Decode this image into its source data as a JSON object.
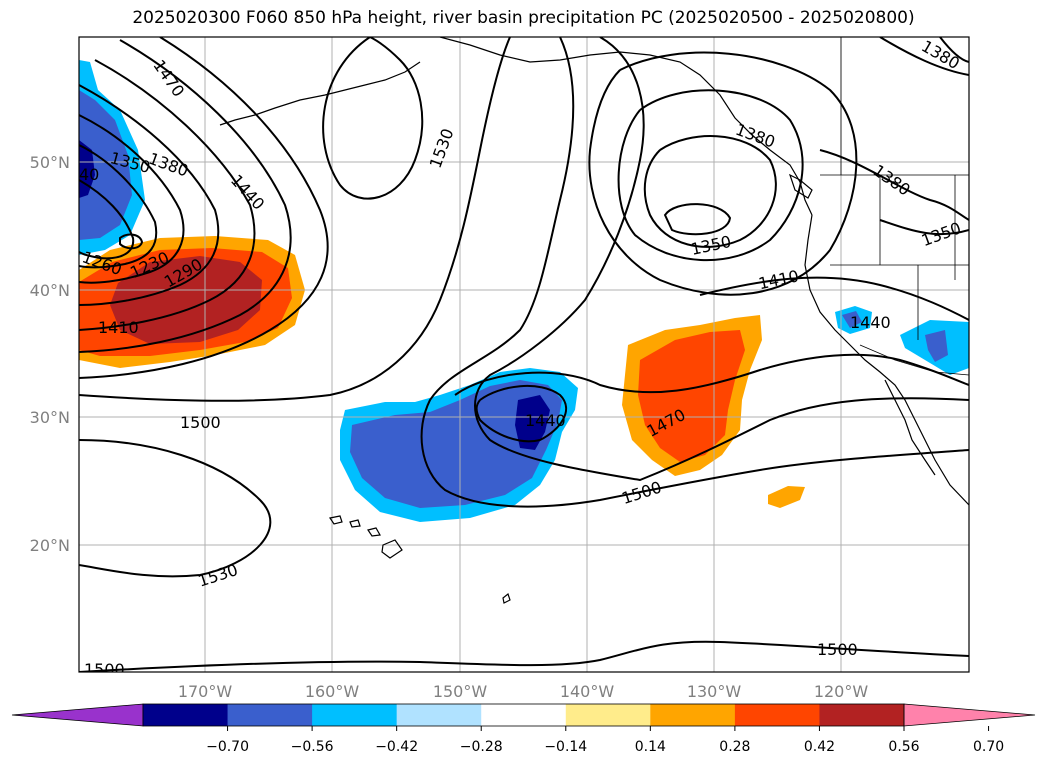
{
  "title": "2025020300 F060 850 hPa height, river basin precipitation PC (2025020500 - 2025020800)",
  "map": {
    "lon_labels": [
      "170°W",
      "160°W",
      "150°W",
      "140°W",
      "130°W",
      "120°W"
    ],
    "lat_labels": [
      "50°N",
      "40°N",
      "30°N",
      "20°N"
    ],
    "contour_labels": [
      {
        "id": "c1470a",
        "text": "1470"
      },
      {
        "id": "c1350a",
        "text": "1350"
      },
      {
        "id": "c1380a",
        "text": "1380"
      },
      {
        "id": "c1440a",
        "text": "1440"
      },
      {
        "id": "c1260",
        "text": "1260"
      },
      {
        "id": "c1230",
        "text": "1230"
      },
      {
        "id": "c1290",
        "text": "1290"
      },
      {
        "id": "c1410a",
        "text": "1410"
      },
      {
        "id": "c1500a",
        "text": "1500"
      },
      {
        "id": "c1530a",
        "text": "1530"
      },
      {
        "id": "c1530b",
        "text": "1530"
      },
      {
        "id": "c1350b",
        "text": "1350"
      },
      {
        "id": "c1410b",
        "text": "1410"
      },
      {
        "id": "c1440b",
        "text": "1440"
      },
      {
        "id": "c1470b",
        "text": "1470"
      },
      {
        "id": "c1500b",
        "text": "1500"
      },
      {
        "id": "c1500c",
        "text": "1500"
      },
      {
        "id": "c1380b",
        "text": "1380"
      },
      {
        "id": "c1380c",
        "text": "1380"
      },
      {
        "id": "c1380d",
        "text": "1380"
      },
      {
        "id": "c1350c",
        "text": "1350"
      },
      {
        "id": "c1440c",
        "text": "1440"
      },
      {
        "id": "c1500d",
        "text": "1500"
      },
      {
        "id": "c40",
        "text": "40"
      }
    ]
  },
  "colorbar": {
    "colors": [
      "#9932cc",
      "#00008b",
      "#3a5fcd",
      "#00bfff",
      "#b0e2ff",
      "#ffffff",
      "#ffec8b",
      "#ffa500",
      "#ff4500",
      "#b22222",
      "#ff82ab"
    ],
    "ticks": [
      "−0.70",
      "−0.56",
      "−0.42",
      "−0.28",
      "−0.14",
      "0.14",
      "0.28",
      "0.42",
      "0.56",
      "0.70"
    ]
  }
}
